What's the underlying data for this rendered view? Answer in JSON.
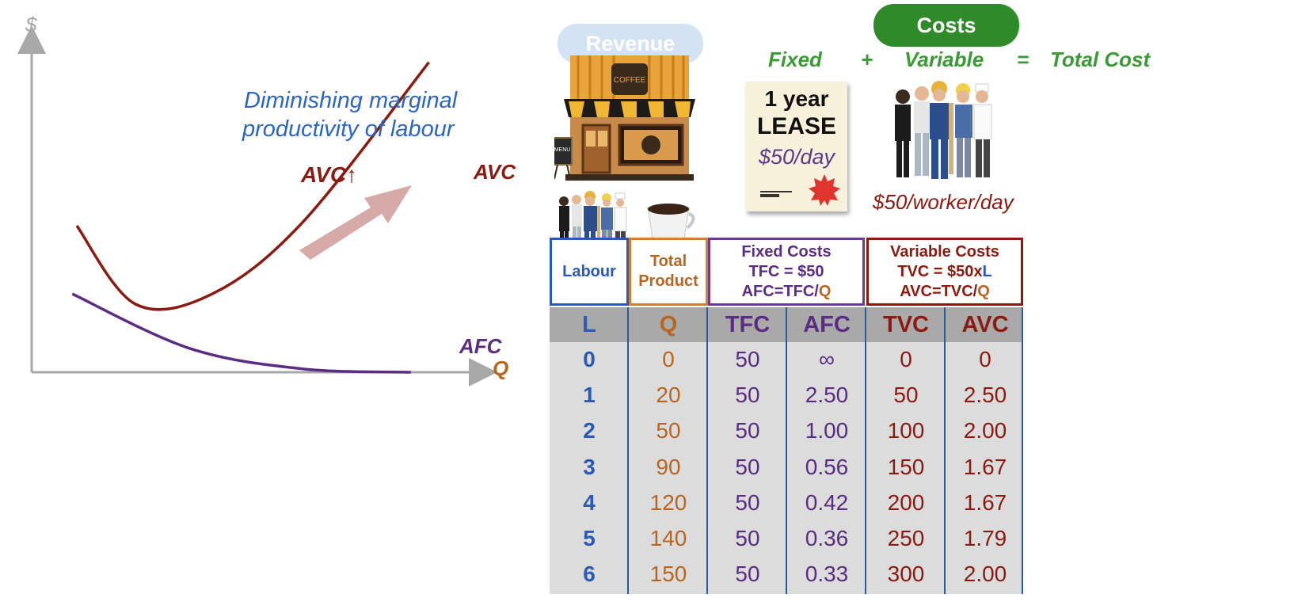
{
  "chart_data": {
    "type": "line",
    "ylabel": "$",
    "xlabel": "Q",
    "series": [
      {
        "name": "AVC",
        "color": "#8b1a10",
        "values": [
          {
            "q": 0.1,
            "c": 0.57
          },
          {
            "q": 0.23,
            "c": 0.8
          },
          {
            "q": 0.4,
            "c": 0.77
          },
          {
            "q": 0.6,
            "c": 0.56
          },
          {
            "q": 0.88,
            "c": 0.09
          }
        ]
      },
      {
        "name": "AFC",
        "color": "#5a2d82",
        "values": [
          {
            "q": 0.09,
            "c": 0.77
          },
          {
            "q": 0.35,
            "c": 0.93
          },
          {
            "q": 0.6,
            "c": 0.99
          },
          {
            "q": 0.84,
            "c": 1.0
          }
        ]
      }
    ],
    "annotations": {
      "diminishing": [
        "Diminishing marginal",
        "productivity of labour"
      ],
      "avc_up": "AVC↑"
    }
  },
  "header": {
    "revenue_label": "Revenue",
    "costs_label": "Costs",
    "fixed_label": "Fixed",
    "plus": "+",
    "variable_label": "Variable",
    "equals": "=",
    "total_label": "Total Cost"
  },
  "lease": {
    "line1": "1 year",
    "line2": "LEASE",
    "rate": "$50/day"
  },
  "worker_rate": "$50/worker/day",
  "table": {
    "group_headers": {
      "labour": "Labour",
      "total_product": [
        "Total",
        "Product"
      ],
      "fixed": {
        "title": "Fixed Costs",
        "tfc": "TFC = $50",
        "afc_prefix": "AFC=TFC/",
        "afc_q": "Q"
      },
      "variable": {
        "title": "Variable Costs",
        "tvc_prefix": "TVC = $50x",
        "tvc_l": "L",
        "avc_prefix": "AVC=TVC/",
        "avc_q": "Q"
      }
    },
    "columns": [
      "L",
      "Q",
      "TFC",
      "AFC",
      "TVC",
      "AVC"
    ],
    "rows": [
      [
        "0",
        "0",
        "50",
        "∞",
        "0",
        "0"
      ],
      [
        "1",
        "20",
        "50",
        "2.50",
        "50",
        "2.50"
      ],
      [
        "2",
        "50",
        "50",
        "1.00",
        "100",
        "2.00"
      ],
      [
        "3",
        "90",
        "50",
        "0.56",
        "150",
        "1.67"
      ],
      [
        "4",
        "120",
        "50",
        "0.42",
        "200",
        "1.67"
      ],
      [
        "5",
        "140",
        "50",
        "0.36",
        "250",
        "1.79"
      ],
      [
        "6",
        "150",
        "50",
        "0.33",
        "300",
        "2.00"
      ]
    ]
  },
  "colors": {
    "labour_blue": "#2a5ab5",
    "product_orange": "#b8651e",
    "fixed_purple": "#5a2d82",
    "variable_red": "#8b1a10",
    "costs_green": "#2f8a2a"
  }
}
